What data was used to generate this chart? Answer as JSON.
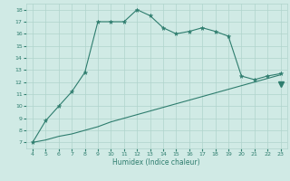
{
  "x_upper": [
    4,
    5,
    6,
    7,
    8,
    9,
    10,
    11,
    12,
    13,
    14,
    15,
    16,
    17,
    18,
    19,
    20,
    21,
    22,
    23
  ],
  "y_upper": [
    7.0,
    8.8,
    10.0,
    11.2,
    12.8,
    17.0,
    17.0,
    17.0,
    18.0,
    17.5,
    16.5,
    16.0,
    16.2,
    16.5,
    16.2,
    15.8,
    12.5,
    12.2,
    12.5,
    12.7
  ],
  "x_lower": [
    4,
    5,
    6,
    7,
    8,
    9,
    10,
    11,
    12,
    13,
    14,
    15,
    16,
    17,
    18,
    19,
    20,
    21,
    22,
    23
  ],
  "y_lower": [
    7.0,
    7.2,
    7.5,
    7.7,
    8.0,
    8.3,
    8.7,
    9.0,
    9.3,
    9.6,
    9.9,
    10.2,
    10.5,
    10.8,
    11.1,
    11.4,
    11.7,
    12.0,
    12.3,
    12.6
  ],
  "line_color": "#2e7d6e",
  "bg_color": "#d0eae5",
  "grid_color": "#afd4cc",
  "xlabel": "Humidex (Indice chaleur)",
  "xlim": [
    3.5,
    23.5
  ],
  "ylim": [
    6.5,
    18.5
  ],
  "xticks": [
    4,
    5,
    6,
    7,
    8,
    9,
    10,
    11,
    12,
    13,
    14,
    15,
    16,
    17,
    18,
    19,
    20,
    21,
    22,
    23
  ],
  "yticks": [
    7,
    8,
    9,
    10,
    11,
    12,
    13,
    14,
    15,
    16,
    17,
    18
  ],
  "marker_size": 3.5,
  "linewidth": 0.8,
  "fig_width": 3.2,
  "fig_height": 2.0,
  "dpi": 100
}
